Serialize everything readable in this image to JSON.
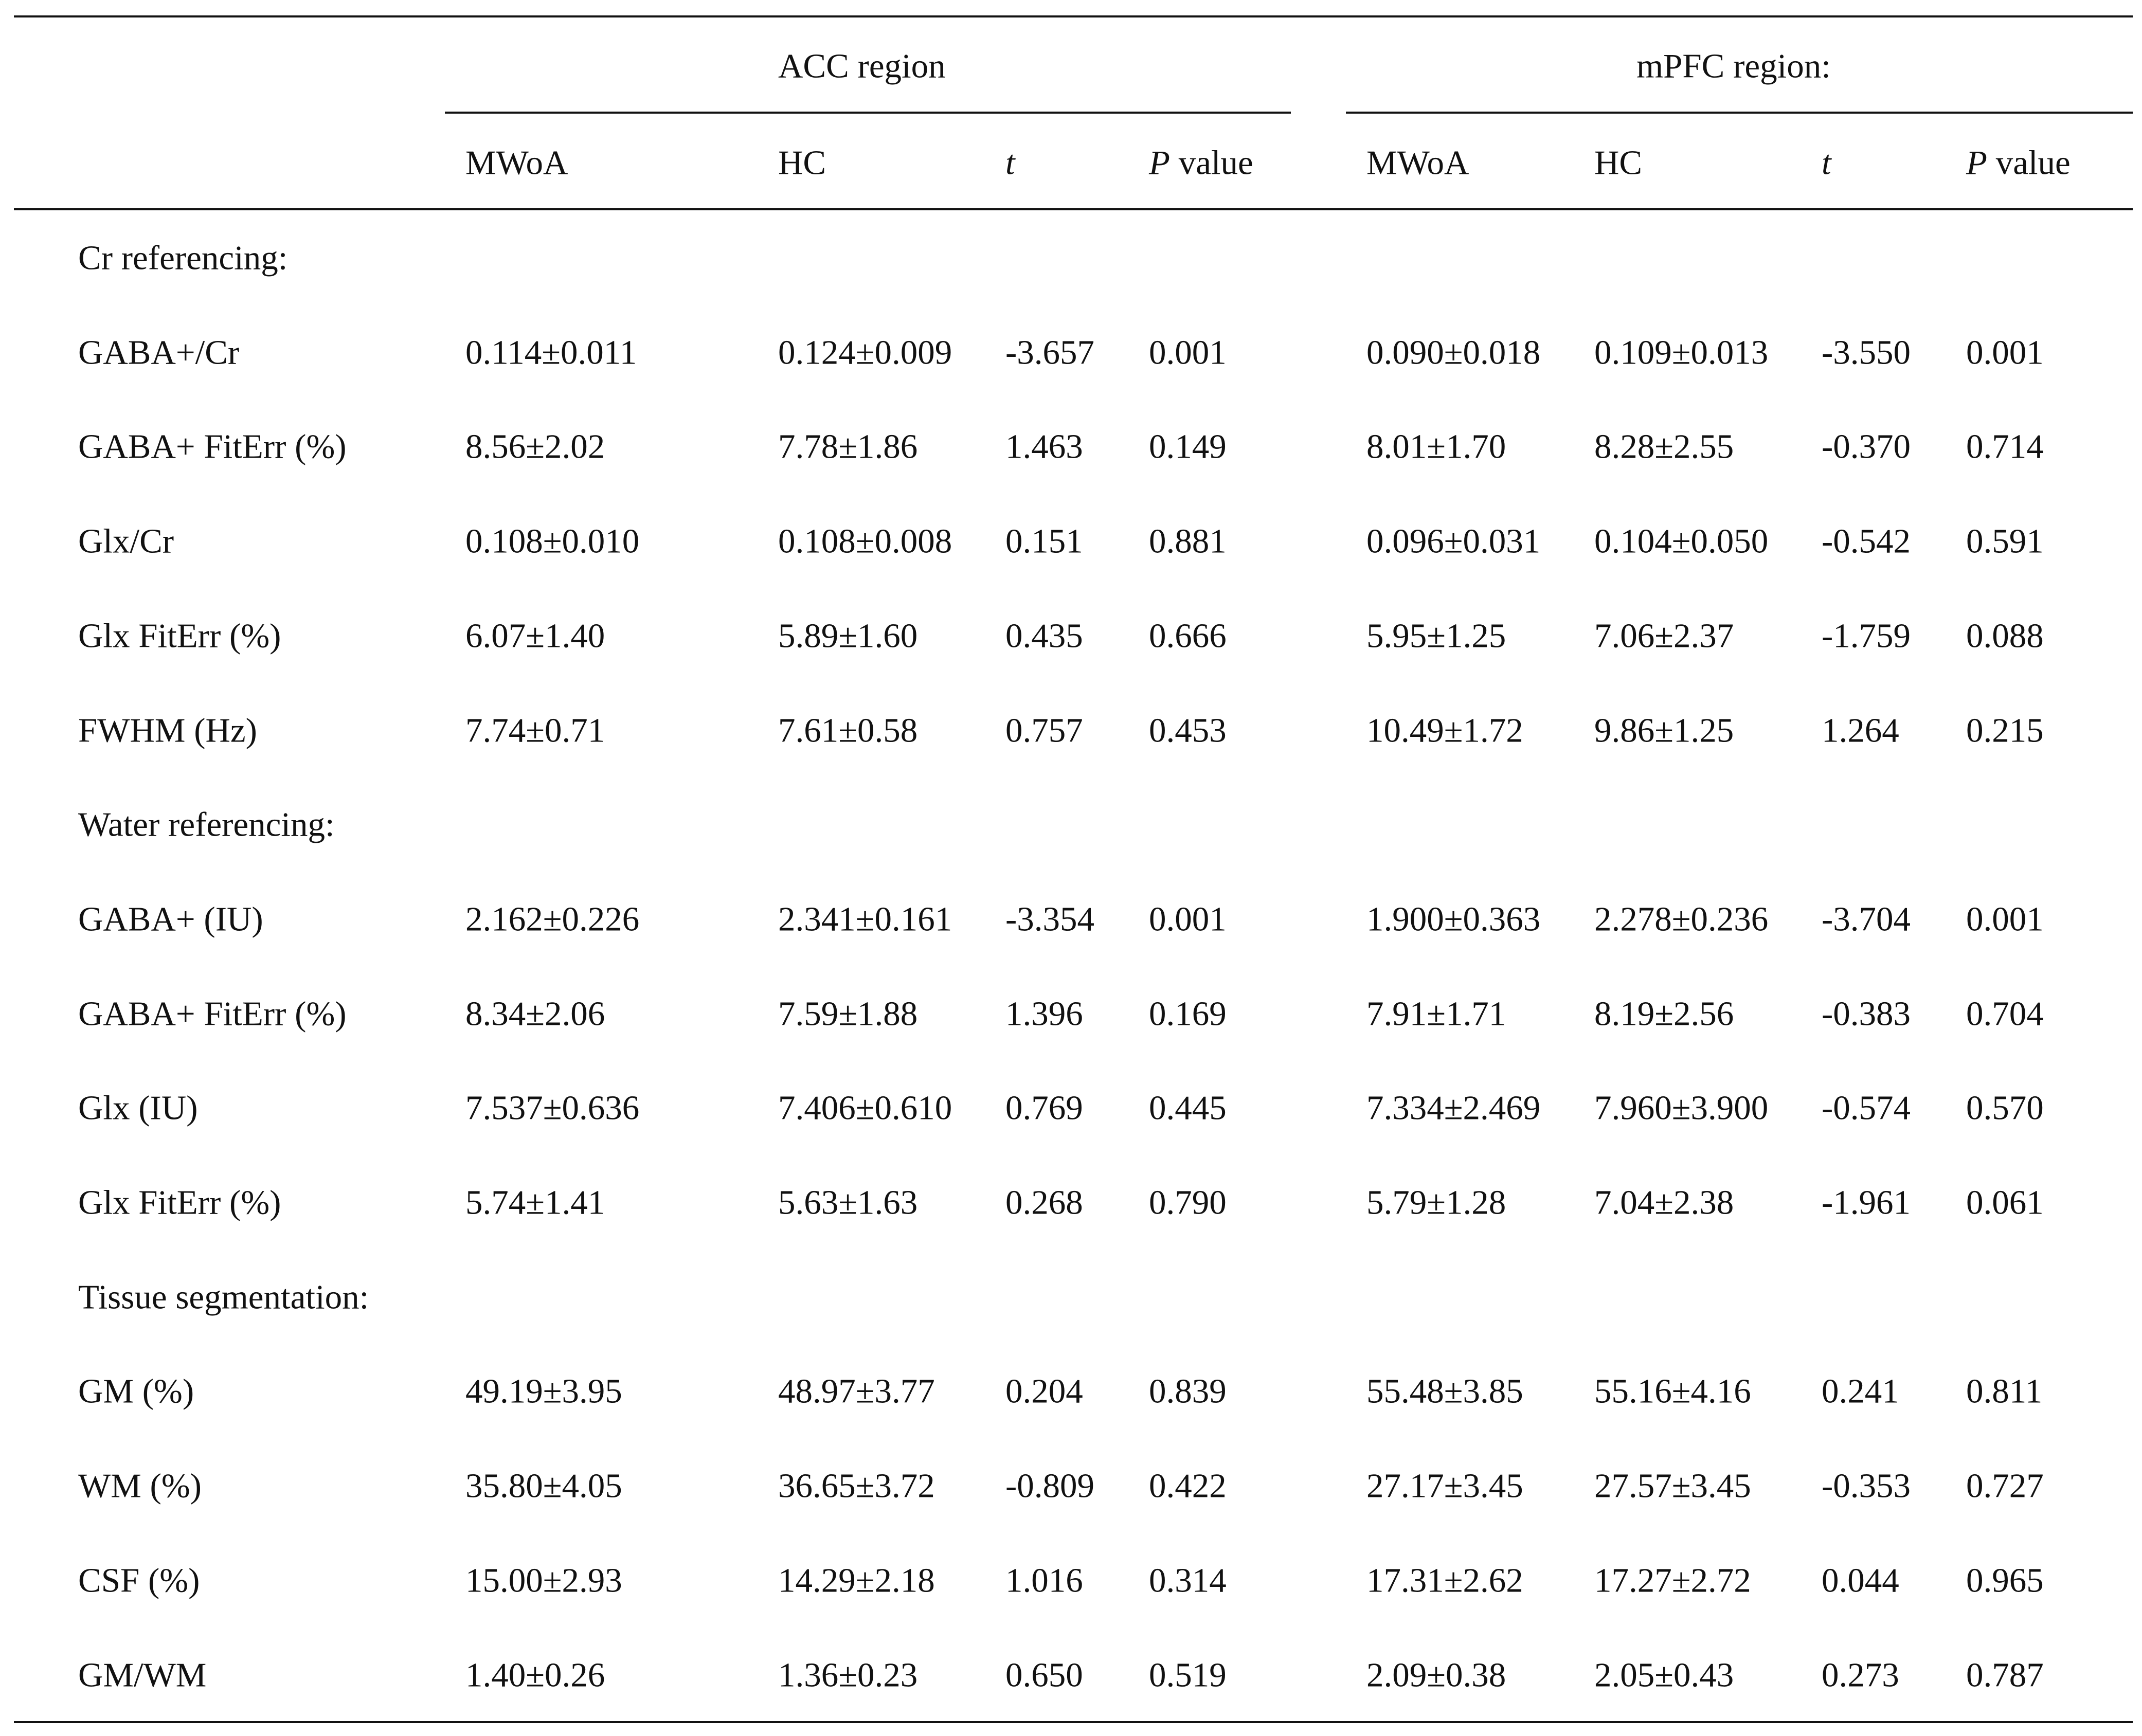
{
  "header": {
    "groups": [
      "ACC region",
      "mPFC region:"
    ],
    "columns": [
      {
        "pre": "",
        "italic": "",
        "post": "MWoA"
      },
      {
        "pre": "",
        "italic": "",
        "post": "HC"
      },
      {
        "pre": "",
        "italic": "t",
        "post": ""
      },
      {
        "pre": "",
        "italic": "P",
        "post": " value"
      },
      {
        "pre": "",
        "italic": "",
        "post": "MWoA"
      },
      {
        "pre": "",
        "italic": "",
        "post": "HC"
      },
      {
        "pre": "",
        "italic": "t",
        "post": ""
      },
      {
        "pre": "",
        "italic": "P",
        "post": " value"
      }
    ]
  },
  "rows": [
    {
      "type": "section",
      "label": "Cr referencing:"
    },
    {
      "type": "data",
      "label": "GABA+/Cr",
      "cells": [
        "0.114±0.011",
        "0.124±0.009",
        "-3.657",
        "0.001",
        "0.090±0.018",
        "0.109±0.013",
        "-3.550",
        "0.001"
      ]
    },
    {
      "type": "data",
      "label": "GABA+ FitErr (%)",
      "cells": [
        "8.56±2.02",
        "7.78±1.86",
        "1.463",
        "0.149",
        "8.01±1.70",
        "8.28±2.55",
        "-0.370",
        "0.714"
      ]
    },
    {
      "type": "data",
      "label": "Glx/Cr",
      "cells": [
        "0.108±0.010",
        "0.108±0.008",
        "0.151",
        "0.881",
        "0.096±0.031",
        "0.104±0.050",
        "-0.542",
        "0.591"
      ]
    },
    {
      "type": "data",
      "label": "Glx FitErr (%)",
      "cells": [
        "6.07±1.40",
        "5.89±1.60",
        "0.435",
        "0.666",
        "5.95±1.25",
        "7.06±2.37",
        "-1.759",
        "0.088"
      ]
    },
    {
      "type": "data",
      "label": "FWHM (Hz)",
      "cells": [
        "7.74±0.71",
        "7.61±0.58",
        "0.757",
        "0.453",
        "10.49±1.72",
        "9.86±1.25",
        "1.264",
        "0.215"
      ]
    },
    {
      "type": "section",
      "label": "Water referencing:"
    },
    {
      "type": "data",
      "label": "GABA+ (IU)",
      "cells": [
        "2.162±0.226",
        "2.341±0.161",
        "-3.354",
        "0.001",
        "1.900±0.363",
        "2.278±0.236",
        "-3.704",
        "0.001"
      ]
    },
    {
      "type": "data",
      "label": "GABA+ FitErr (%)",
      "cells": [
        "8.34±2.06",
        "7.59±1.88",
        "1.396",
        "0.169",
        "7.91±1.71",
        "8.19±2.56",
        "-0.383",
        "0.704"
      ]
    },
    {
      "type": "data",
      "label": "Glx (IU)",
      "cells": [
        "7.537±0.636",
        "7.406±0.610",
        "0.769",
        "0.445",
        "7.334±2.469",
        "7.960±3.900",
        "-0.574",
        "0.570"
      ]
    },
    {
      "type": "data",
      "label": "Glx FitErr (%)",
      "cells": [
        "5.74±1.41",
        "5.63±1.63",
        "0.268",
        "0.790",
        "5.79±1.28",
        "7.04±2.38",
        "-1.961",
        "0.061"
      ]
    },
    {
      "type": "section",
      "label": "Tissue segmentation:"
    },
    {
      "type": "data",
      "label": "GM (%)",
      "cells": [
        "49.19±3.95",
        "48.97±3.77",
        "0.204",
        "0.839",
        "55.48±3.85",
        "55.16±4.16",
        "0.241",
        "0.811"
      ]
    },
    {
      "type": "data",
      "label": "WM (%)",
      "cells": [
        "35.80±4.05",
        "36.65±3.72",
        "-0.809",
        "0.422",
        "27.17±3.45",
        "27.57±3.45",
        "-0.353",
        "0.727"
      ]
    },
    {
      "type": "data",
      "label": "CSF (%)",
      "cells": [
        "15.00±2.93",
        "14.29±2.18",
        "1.016",
        "0.314",
        "17.31±2.62",
        "17.27±2.72",
        "0.044",
        "0.965"
      ]
    },
    {
      "type": "data",
      "label": "GM/WM",
      "cells": [
        "1.40±0.26",
        "1.36±0.23",
        "0.650",
        "0.519",
        "2.09±0.38",
        "2.05±0.43",
        "0.273",
        "0.787"
      ]
    }
  ]
}
